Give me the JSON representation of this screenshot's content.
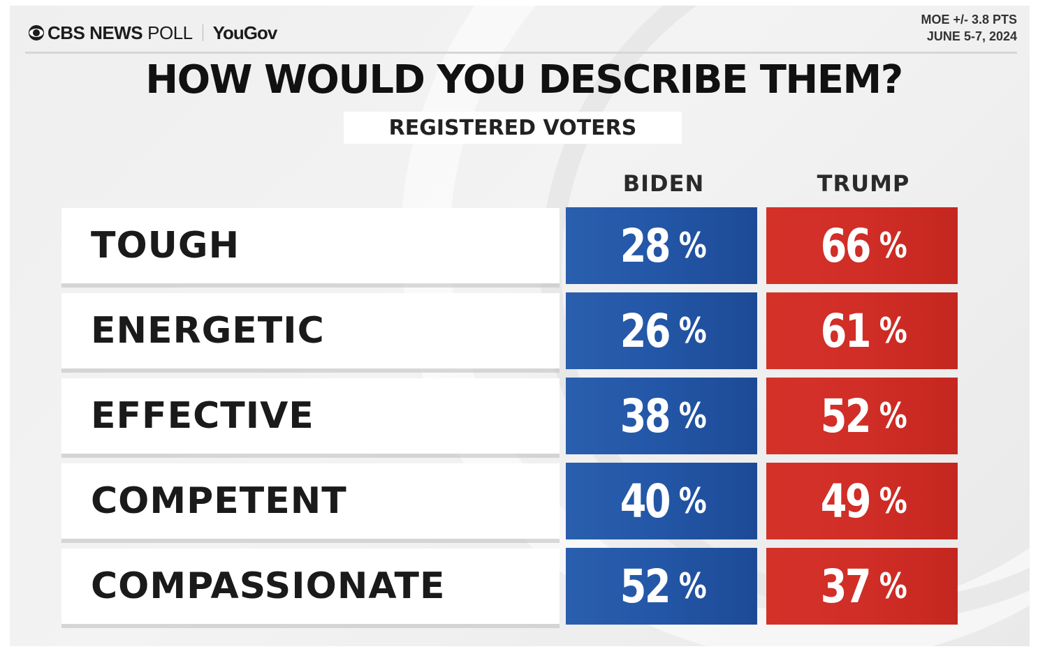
{
  "header": {
    "cbs_label": "CBS NEWS",
    "poll_label": "POLL",
    "yougov_label": "YouGov",
    "moe": "MOE +/- 3.8 PTS",
    "dates": "JUNE 5-7, 2024"
  },
  "chart_data": {
    "type": "table",
    "title": "HOW WOULD YOU DESCRIBE THEM?",
    "subtitle": "REGISTERED VOTERS",
    "columns": [
      "BIDEN",
      "TRUMP"
    ],
    "rows": [
      {
        "label": "TOUGH",
        "biden": "28",
        "trump": "66"
      },
      {
        "label": "ENERGETIC",
        "biden": "26",
        "trump": "61"
      },
      {
        "label": "EFFECTIVE",
        "biden": "38",
        "trump": "52"
      },
      {
        "label": "COMPETENT",
        "biden": "40",
        "trump": "49"
      },
      {
        "label": "COMPASSIONATE",
        "biden": "52",
        "trump": "37"
      }
    ],
    "unit": "%",
    "series": [
      {
        "name": "BIDEN",
        "values": [
          28,
          26,
          38,
          40,
          52
        ],
        "color": "#2356a6"
      },
      {
        "name": "TRUMP",
        "values": [
          66,
          61,
          52,
          49,
          37
        ],
        "color": "#cf2d26"
      }
    ]
  }
}
